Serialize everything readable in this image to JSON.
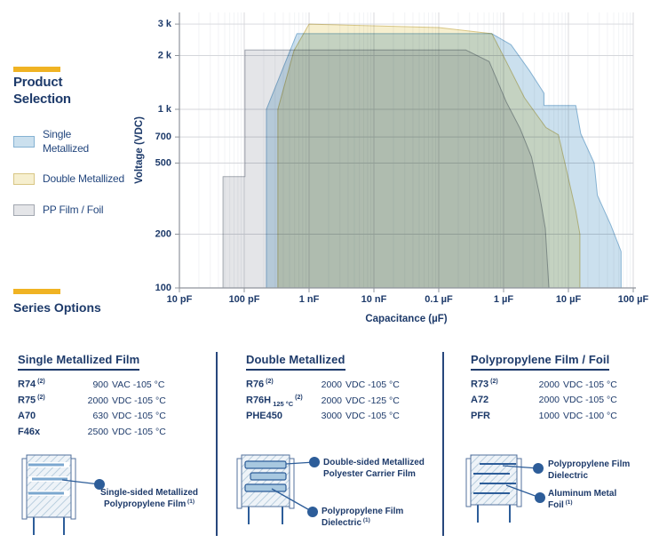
{
  "legend": {
    "title": "Product Selection",
    "items": [
      {
        "key": "single",
        "lines": [
          "Single",
          "Metallized"
        ]
      },
      {
        "key": "double",
        "lines": [
          "Double Metallized"
        ]
      },
      {
        "key": "pp",
        "lines": [
          "PP Film / Foil"
        ]
      }
    ]
  },
  "series_options_label": "Series Options",
  "colors": {
    "navy": "#1d3a6a",
    "accent_yellow": "#f0b323",
    "axis": "#8f949c",
    "grid": "#d4d6db",
    "grid_minor": "#eaecef",
    "regions": {
      "single": {
        "fill": "#cbe0ee",
        "edge": "#85b2d3"
      },
      "double": {
        "fill": "#f6efcf",
        "edge": "#d8c684"
      },
      "pp": {
        "fill": "#e4e5e8",
        "edge": "#a2a7b0"
      }
    },
    "callout": "#2d5d99"
  },
  "chart_data": {
    "type": "area",
    "title": "",
    "xlabel": "Capacitance (µF)",
    "ylabel": "Voltage (VDC)",
    "x_ticks": [
      {
        "label": "10 pF",
        "pf": 10
      },
      {
        "label": "100 pF",
        "pf": 100
      },
      {
        "label": "1 nF",
        "pf": 1000
      },
      {
        "label": "10 nF",
        "pf": 10000
      },
      {
        "label": "0.1 µF",
        "pf": 100000
      },
      {
        "label": "1 µF",
        "pf": 1000000
      },
      {
        "label": "10 µF",
        "pf": 10000000
      },
      {
        "label": "100 µF",
        "pf": 100000000
      }
    ],
    "y_ticks": [
      {
        "label": "3 k",
        "v": 3000
      },
      {
        "label": "2 k",
        "v": 2000
      },
      {
        "label": "1 k",
        "v": 1000
      },
      {
        "label": "700",
        "v": 700
      },
      {
        "label": "500",
        "v": 500
      },
      {
        "label": "200",
        "v": 200
      },
      {
        "label": "100",
        "v": 100
      }
    ],
    "x_range_pf": [
      10,
      100000000
    ],
    "y_range_v": [
      100,
      3500
    ],
    "grid": true,
    "legend_position": "left",
    "series": [
      {
        "name": "PP Film / Foil",
        "key": "pp",
        "points_pf_v": [
          [
            47,
            100
          ],
          [
            47,
            420
          ],
          [
            103,
            420
          ],
          [
            103,
            2150
          ],
          [
            260000,
            2150
          ],
          [
            600000,
            1850
          ],
          [
            1100000,
            1100
          ],
          [
            1800000,
            780
          ],
          [
            2700000,
            540
          ],
          [
            3600000,
            330
          ],
          [
            4400000,
            215
          ],
          [
            5000000,
            100
          ]
        ]
      },
      {
        "name": "Double Metallized",
        "key": "double",
        "points_pf_v": [
          [
            330,
            100
          ],
          [
            330,
            1000
          ],
          [
            585,
            2130
          ],
          [
            1000,
            3000
          ],
          [
            100000,
            2870
          ],
          [
            660000,
            2650
          ],
          [
            1100000,
            1850
          ],
          [
            2100000,
            1160
          ],
          [
            4500000,
            790
          ],
          [
            7000000,
            720
          ],
          [
            10000000,
            410
          ],
          [
            13000000,
            270
          ],
          [
            15000000,
            200
          ],
          [
            15000000,
            100
          ]
        ]
      },
      {
        "name": "Single Metallized",
        "key": "single",
        "points_pf_v": [
          [
            220,
            100
          ],
          [
            220,
            1000
          ],
          [
            650,
            2650
          ],
          [
            660000,
            2650
          ],
          [
            1300000,
            2300
          ],
          [
            2500000,
            1650
          ],
          [
            4200000,
            1230
          ],
          [
            4200000,
            1050
          ],
          [
            13000000,
            1050
          ],
          [
            15500000,
            730
          ],
          [
            25000000,
            500
          ],
          [
            28000000,
            330
          ],
          [
            45000000,
            225
          ],
          [
            65000000,
            160
          ],
          [
            65000000,
            100
          ]
        ]
      }
    ]
  },
  "tables": [
    {
      "title": "Single Metallized Film",
      "rows": [
        {
          "code": "R74",
          "sup": "(2)",
          "sub": "",
          "num": "900",
          "rest": "VAC -105 °C"
        },
        {
          "code": "R75",
          "sup": "(2)",
          "sub": "",
          "num": "2000",
          "rest": "VDC -105 °C"
        },
        {
          "code": "A70",
          "sup": "",
          "sub": "",
          "num": "630",
          "rest": "VDC -105 °C"
        },
        {
          "code": "F46x",
          "sup": "",
          "sub": "",
          "num": "2500",
          "rest": "VDC -105 °C"
        }
      ]
    },
    {
      "title": "Double Metallized",
      "rows": [
        {
          "code": "R76",
          "sup": "(2)",
          "sub": "",
          "num": "2000",
          "rest": "VDC -105 °C"
        },
        {
          "code": "R76H",
          "sup": "(2)",
          "sub": "125 °C",
          "num": "2000",
          "rest": "VDC -125 °C"
        },
        {
          "code": "PHE450",
          "sup": "",
          "sub": "",
          "num": "3000",
          "rest": "VDC -105 °C"
        }
      ]
    },
    {
      "title": "Polypropylene Film / Foil",
      "rows": [
        {
          "code": "R73",
          "sup": "(2)",
          "sub": "",
          "num": "2000",
          "rest": "VDC -105 °C"
        },
        {
          "code": "A72",
          "sup": "",
          "sub": "",
          "num": "2000",
          "rest": "VDC -105 °C"
        },
        {
          "code": "PFR",
          "sup": "",
          "sub": "",
          "num": "1000",
          "rest": "VDC -100 °C"
        }
      ]
    }
  ],
  "diagrams": [
    {
      "labels": [
        {
          "lines": [
            "Single-sided Metallized",
            "Polypropylene Film"
          ],
          "sup": "(1)"
        }
      ]
    },
    {
      "labels": [
        {
          "lines": [
            "Double-sided Metallized",
            "Polyester Carrier Film"
          ],
          "sup": ""
        },
        {
          "lines": [
            "Polypropylene Film",
            "Dielectric"
          ],
          "sup": "(1)"
        }
      ]
    },
    {
      "labels": [
        {
          "lines": [
            "Polypropylene Film",
            "Dielectric"
          ],
          "sup": ""
        },
        {
          "lines": [
            "Aluminum Metal",
            "Foil"
          ],
          "sup": "(1)"
        }
      ]
    }
  ]
}
